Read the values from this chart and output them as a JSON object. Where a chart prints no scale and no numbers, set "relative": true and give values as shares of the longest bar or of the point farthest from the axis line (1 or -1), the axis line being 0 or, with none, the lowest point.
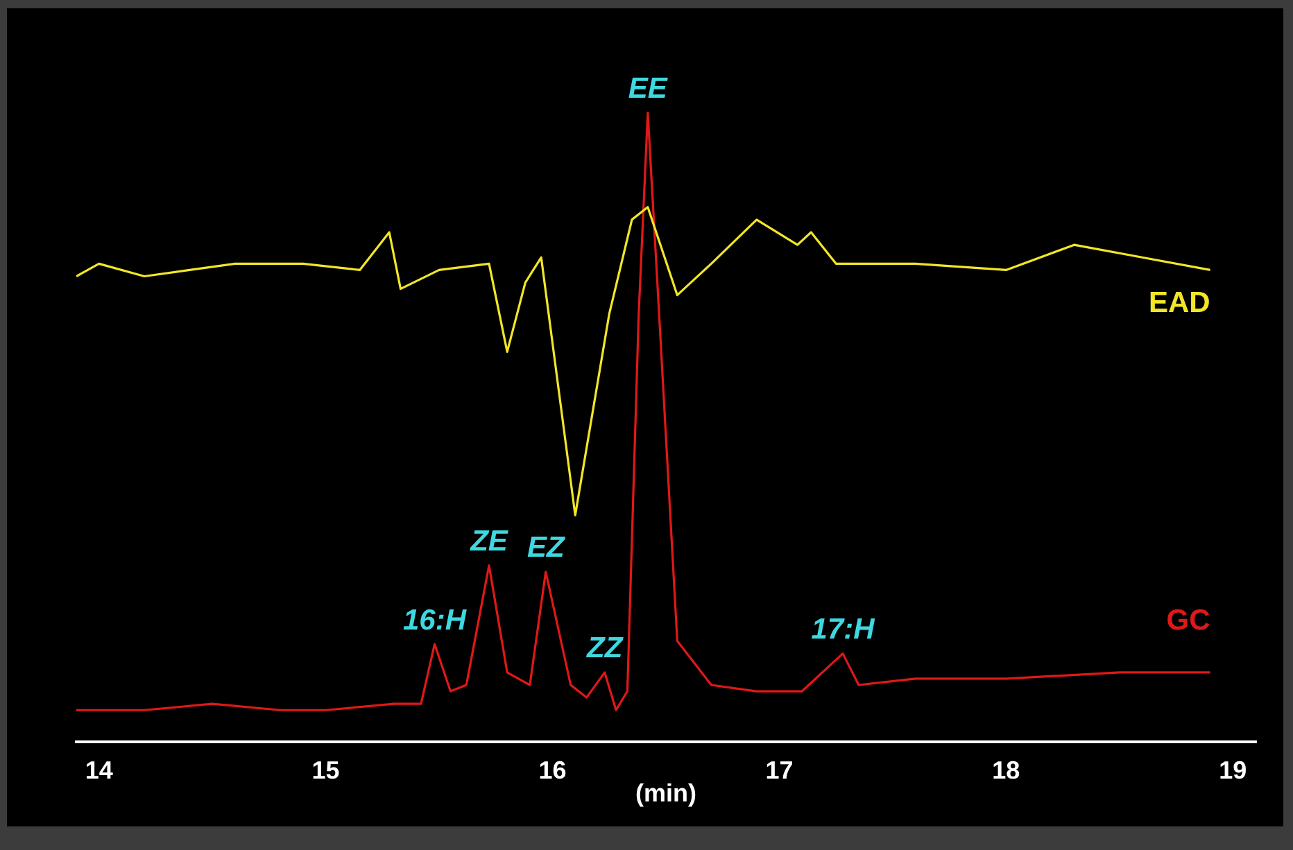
{
  "chart_data": {
    "type": "line",
    "relative": true,
    "xlabel": "(min)",
    "xlim": [
      13.9,
      19.1
    ],
    "xticks": [
      14,
      15,
      16,
      17,
      18,
      19
    ],
    "legend": false,
    "grid": false,
    "marker": "none",
    "series": [
      {
        "name": "EAD",
        "color": "#f2e626",
        "x": [
          13.9,
          14.0,
          14.2,
          14.4,
          14.6,
          14.9,
          15.15,
          15.28,
          15.33,
          15.5,
          15.72,
          15.8,
          15.88,
          15.95,
          16.1,
          16.25,
          16.35,
          16.42,
          16.55,
          16.7,
          16.9,
          17.08,
          17.14,
          17.25,
          17.6,
          18.0,
          18.3,
          18.6,
          18.9
        ],
        "values": [
          0.74,
          0.76,
          0.74,
          0.75,
          0.76,
          0.76,
          0.75,
          0.81,
          0.72,
          0.75,
          0.76,
          0.62,
          0.73,
          0.77,
          0.36,
          0.68,
          0.83,
          0.85,
          0.71,
          0.76,
          0.83,
          0.79,
          0.81,
          0.76,
          0.76,
          0.75,
          0.79,
          0.77,
          0.75
        ]
      },
      {
        "name": "GC",
        "color": "#e01818",
        "x": [
          13.9,
          14.2,
          14.5,
          14.8,
          15.0,
          15.3,
          15.42,
          15.48,
          15.55,
          15.62,
          15.72,
          15.8,
          15.9,
          15.97,
          16.08,
          16.15,
          16.23,
          16.28,
          16.33,
          16.38,
          16.42,
          16.47,
          16.55,
          16.7,
          16.9,
          17.1,
          17.28,
          17.35,
          17.6,
          18.0,
          18.5,
          18.9
        ],
        "values": [
          0.05,
          0.05,
          0.06,
          0.05,
          0.05,
          0.06,
          0.06,
          0.155,
          0.08,
          0.09,
          0.28,
          0.11,
          0.09,
          0.27,
          0.09,
          0.07,
          0.11,
          0.05,
          0.08,
          0.68,
          1.0,
          0.68,
          0.16,
          0.09,
          0.08,
          0.08,
          0.14,
          0.09,
          0.1,
          0.1,
          0.11,
          0.11
        ]
      }
    ],
    "annotations": [
      {
        "text": "EE",
        "x": 16.42,
        "y": 1.0
      },
      {
        "text": "ZE",
        "x": 15.72,
        "y": 0.28
      },
      {
        "text": "EZ",
        "x": 15.97,
        "y": 0.27
      },
      {
        "text": "ZZ",
        "x": 16.23,
        "y": 0.11
      },
      {
        "text": "16:H",
        "x": 15.48,
        "y": 0.155
      },
      {
        "text": "17:H",
        "x": 17.28,
        "y": 0.14
      }
    ]
  }
}
